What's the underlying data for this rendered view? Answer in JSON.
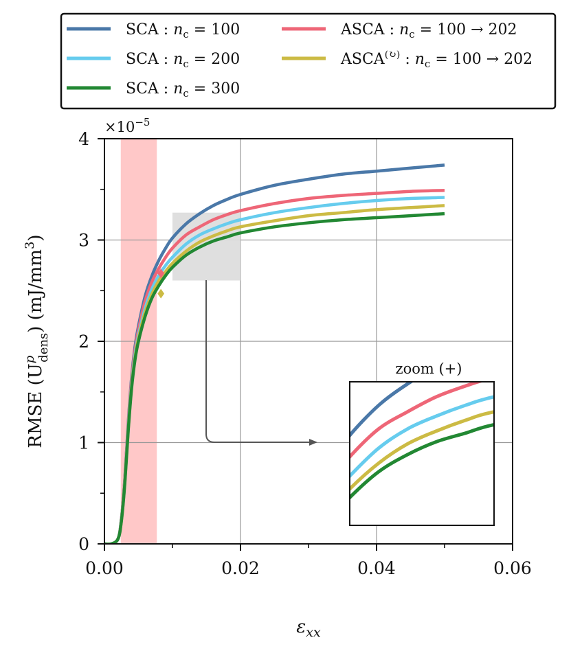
{
  "chart_data": {
    "type": "line",
    "xlabel": "ε",
    "xlabel_sub": "xx",
    "ylabel": {
      "prefix": "RMSE (U",
      "sup": "p",
      "sub": "dens",
      "suffix": ") (mJ/mm",
      "unit_exp": "3",
      "close": ")"
    },
    "y_multiplier": "×10",
    "y_multiplier_exp": "−5",
    "xlim": [
      0,
      0.06
    ],
    "ylim": [
      0,
      4
    ],
    "xticks": [
      0,
      0.02,
      0.04,
      0.06
    ],
    "xtick_labels": [
      "0.00",
      "0.02",
      "0.04",
      "0.06"
    ],
    "yticks": [
      0,
      1,
      2,
      3,
      4
    ],
    "ytick_labels": [
      "0",
      "1",
      "2",
      "3",
      "4"
    ],
    "grid": true,
    "x": [
      0.0,
      0.001,
      0.002,
      0.0025,
      0.003,
      0.0035,
      0.004,
      0.0045,
      0.005,
      0.006,
      0.007,
      0.008,
      0.009,
      0.01,
      0.012,
      0.014,
      0.016,
      0.018,
      0.02,
      0.025,
      0.03,
      0.035,
      0.04,
      0.045,
      0.05
    ],
    "series": [
      {
        "name": "SCA : n_c = 100",
        "color": "#4a78a8",
        "values": [
          0.0,
          0.0,
          0.05,
          0.25,
          0.65,
          1.2,
          1.65,
          1.95,
          2.15,
          2.45,
          2.65,
          2.8,
          2.92,
          3.02,
          3.16,
          3.26,
          3.34,
          3.4,
          3.45,
          3.54,
          3.6,
          3.65,
          3.68,
          3.71,
          3.74
        ]
      },
      {
        "name": "SCA : n_c = 200",
        "color": "#66ccee",
        "values": [
          0.0,
          0.0,
          0.05,
          0.24,
          0.62,
          1.15,
          1.58,
          1.87,
          2.06,
          2.33,
          2.52,
          2.65,
          2.75,
          2.83,
          2.96,
          3.05,
          3.11,
          3.16,
          3.2,
          3.27,
          3.32,
          3.36,
          3.39,
          3.41,
          3.42
        ]
      },
      {
        "name": "SCA : n_c = 300",
        "color": "#228833",
        "values": [
          0.0,
          0.0,
          0.05,
          0.23,
          0.6,
          1.12,
          1.54,
          1.82,
          2.0,
          2.25,
          2.43,
          2.55,
          2.65,
          2.73,
          2.85,
          2.93,
          2.99,
          3.03,
          3.07,
          3.13,
          3.17,
          3.2,
          3.22,
          3.24,
          3.26
        ]
      },
      {
        "name": "ASCA : n_c = 100 → 202",
        "color": "#ee6677",
        "values": [
          0.0,
          0.0,
          0.05,
          0.25,
          0.64,
          1.18,
          1.62,
          1.91,
          2.11,
          2.4,
          2.59,
          2.72,
          2.83,
          2.92,
          3.05,
          3.13,
          3.2,
          3.25,
          3.29,
          3.36,
          3.41,
          3.44,
          3.46,
          3.48,
          3.49
        ]
      },
      {
        "name": "ASCA^(↻) : n_c = 100 → 202",
        "color": "#ccbb44",
        "values": [
          0.0,
          0.0,
          0.05,
          0.23,
          0.61,
          1.13,
          1.56,
          1.84,
          2.03,
          2.29,
          2.47,
          2.6,
          2.69,
          2.77,
          2.89,
          2.98,
          3.04,
          3.09,
          3.13,
          3.19,
          3.24,
          3.27,
          3.3,
          3.32,
          3.34
        ]
      }
    ],
    "markers": [
      {
        "series": 3,
        "x": 0.0083,
        "y": 2.67
      },
      {
        "series": 4,
        "x": 0.0083,
        "y": 2.47
      }
    ],
    "shaded_band": {
      "x0": 0.0024,
      "x1": 0.0077,
      "color": "#ffc8c8"
    },
    "zoom_region": {
      "x0": 0.01,
      "x1": 0.02,
      "y0": 2.6,
      "y1": 3.27,
      "color": "#dddddd"
    },
    "inset_title": "zoom (+)",
    "legend": {
      "placement": "top",
      "entries": [
        {
          "series": 0,
          "label": "SCA :",
          "n": "n",
          "sub": "c",
          "rest": " = 100"
        },
        {
          "series": 1,
          "label": "SCA :",
          "n": "n",
          "sub": "c",
          "rest": " = 200"
        },
        {
          "series": 2,
          "label": "SCA :",
          "n": "n",
          "sub": "c",
          "rest": " = 300"
        },
        {
          "series": 3,
          "label": "ASCA :",
          "n": "n",
          "sub": "c",
          "rest": " = 100 → 202"
        },
        {
          "series": 4,
          "label": "ASCA",
          "sup": "(↻)",
          "after_sup": " :",
          "n": "n",
          "sub": "c",
          "rest": " = 100 → 202"
        }
      ]
    }
  }
}
